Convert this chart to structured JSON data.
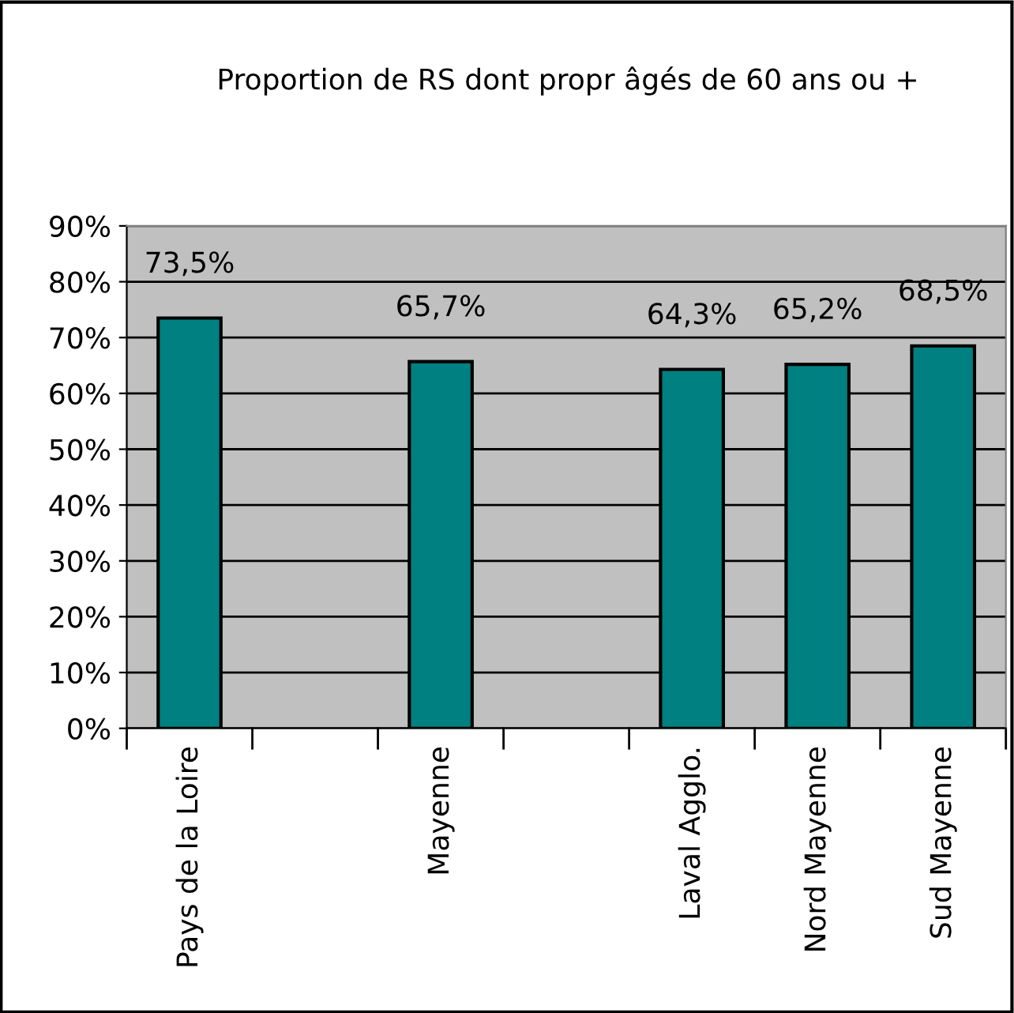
{
  "chart_data": {
    "type": "bar",
    "title": "Proportion de RS dont propr âgés de 60 ans ou +",
    "categories": [
      "Pays de la Loire",
      null,
      "Mayenne",
      null,
      "Laval Agglo.",
      "Nord Mayenne",
      "Sud Mayenne"
    ],
    "values": [
      73.5,
      null,
      65.7,
      null,
      64.3,
      65.2,
      68.5
    ],
    "value_labels": [
      "73,5%",
      null,
      "65,7%",
      null,
      "64,3%",
      "65,2%",
      "68,5%"
    ],
    "color": "#008080",
    "ylim": [
      0,
      90
    ],
    "yticks": [
      {
        "value": 0,
        "label": "0%"
      },
      {
        "value": 10,
        "label": "10%"
      },
      {
        "value": 20,
        "label": "20%"
      },
      {
        "value": 30,
        "label": "30%"
      },
      {
        "value": 40,
        "label": "40%"
      },
      {
        "value": 50,
        "label": "50%"
      },
      {
        "value": 60,
        "label": "60%"
      },
      {
        "value": 70,
        "label": "70%"
      },
      {
        "value": 80,
        "label": "80%"
      },
      {
        "value": 90,
        "label": "90%"
      }
    ],
    "grid": "y",
    "legend": false
  }
}
